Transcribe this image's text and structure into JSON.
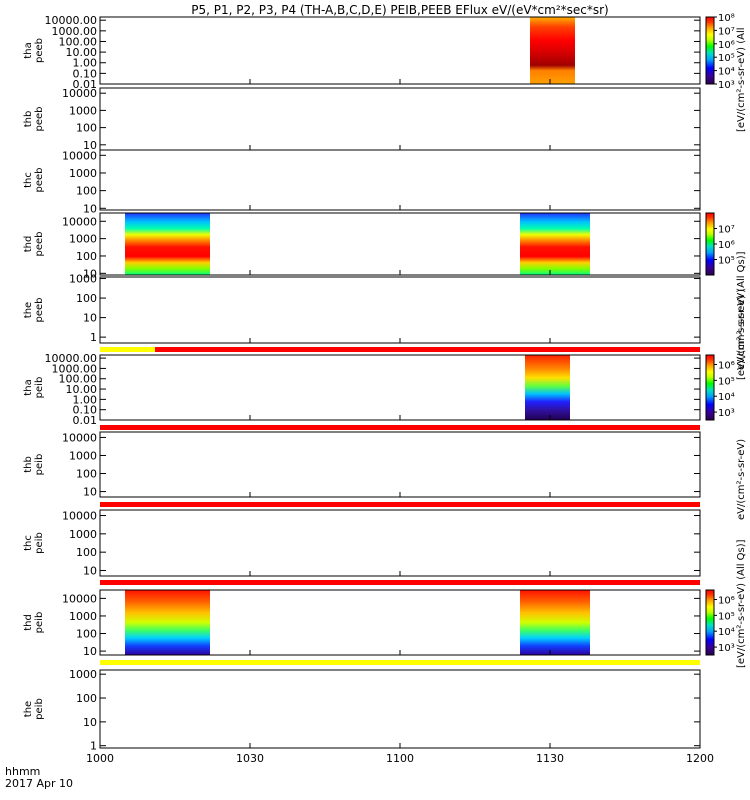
{
  "chart_data": {
    "type": "heatmap",
    "title": "P5, P1, P2, P3, P4 (TH-A,B,C,D,E) PEIB,PEEB EFlux eV/(eV*cm²*sec*sr)",
    "xlabel": "hhmm",
    "date_label": "2017 Apr 10",
    "x_tick_labels": [
      "1000",
      "1030",
      "1100",
      "1130",
      "1200"
    ],
    "x_range_hhmm": [
      "10:00",
      "12:00"
    ],
    "colorbar_unit_main": "eV/(cm²-s-sr-eV)",
    "colorbar_unit_top": "[eV/(cm²-s-sr-eV) (All",
    "colorbar_unit_alt": "[eV/(cm²-s-sr-eV) (All Qs)]",
    "colorbar_unit_e": "[eV/(cm²-s-sr-eV) (All Qs)]",
    "panels": [
      {
        "probe": "tha",
        "species": "peeb",
        "y_ticks": [
          "10000.00",
          "1000.00",
          "100.00",
          "10.00",
          "1.00",
          "0.10",
          "0.01"
        ],
        "y_log_range": [
          0.01,
          20000
        ],
        "colorbar": true,
        "cbar_ticks": [
          "10⁸",
          "10⁷",
          "10⁶",
          "10⁵",
          "10⁴",
          "10³"
        ],
        "cbar_log_range": [
          3,
          8
        ],
        "blocks": [
          {
            "t0": "11:26",
            "t1": "11:35",
            "style": "tha_peeb"
          }
        ],
        "status_bar": null
      },
      {
        "probe": "thb",
        "species": "peeb",
        "y_ticks": [
          "10000",
          "1000",
          "100",
          "10"
        ],
        "y_log_range": [
          5,
          20000
        ],
        "colorbar": false,
        "blocks": [],
        "status_bar": null
      },
      {
        "probe": "thc",
        "species": "peeb",
        "y_ticks": [
          "10000",
          "1000",
          "100",
          "10"
        ],
        "y_log_range": [
          8,
          20000
        ],
        "colorbar": false,
        "blocks": [],
        "status_bar": null
      },
      {
        "probe": "thd",
        "species": "peeb",
        "y_ticks": [
          "10000",
          "1000",
          "100",
          "10"
        ],
        "y_log_range": [
          8,
          30000
        ],
        "colorbar": true,
        "cbar_ticks": [
          "10⁷",
          "10⁶",
          "10⁵"
        ],
        "cbar_log_range": [
          4,
          8
        ],
        "blocks": [
          {
            "t0": "10:05",
            "t1": "10:22",
            "style": "thd_peeb"
          },
          {
            "t0": "11:24",
            "t1": "11:38",
            "style": "thd_peeb"
          }
        ],
        "status_bar": null
      },
      {
        "probe": "the",
        "species": "peeb",
        "y_ticks": [
          "1000",
          "100",
          "10",
          "1"
        ],
        "y_log_range": [
          0.5,
          1200
        ],
        "colorbar": false,
        "blocks": [],
        "status_bar": {
          "segments": [
            {
              "t0": "10:00",
              "t1": "10:11",
              "color": "#ffff00"
            },
            {
              "t0": "10:11",
              "t1": "12:00",
              "color": "#ff0000"
            }
          ]
        }
      },
      {
        "probe": "tha",
        "species": "peib",
        "y_ticks": [
          "10000.00",
          "1000.00",
          "100.00",
          "10.00",
          "1.00",
          "0.10",
          "0.01"
        ],
        "y_log_range": [
          0.01,
          20000
        ],
        "colorbar": true,
        "cbar_ticks": [
          "10⁶",
          "10⁵",
          "10⁴",
          "10³"
        ],
        "cbar_log_range": [
          2.5,
          6.6
        ],
        "blocks": [
          {
            "t0": "11:25",
            "t1": "11:34",
            "style": "tha_peib"
          }
        ],
        "status_bar": {
          "segments": [
            {
              "t0": "10:00",
              "t1": "12:00",
              "color": "#ff0000"
            }
          ]
        }
      },
      {
        "probe": "thb",
        "species": "peib",
        "y_ticks": [
          "10000",
          "1000",
          "100",
          "10"
        ],
        "y_log_range": [
          5,
          20000
        ],
        "colorbar": false,
        "blocks": [],
        "status_bar": {
          "segments": [
            {
              "t0": "10:00",
              "t1": "12:00",
              "color": "#ff0000"
            }
          ]
        }
      },
      {
        "probe": "thc",
        "species": "peib",
        "y_ticks": [
          "10000",
          "1000",
          "100",
          "10"
        ],
        "y_log_range": [
          5,
          20000
        ],
        "colorbar": false,
        "blocks": [],
        "status_bar": {
          "segments": [
            {
              "t0": "10:00",
              "t1": "12:00",
              "color": "#ff0000"
            }
          ]
        }
      },
      {
        "probe": "thd",
        "species": "peib",
        "y_ticks": [
          "10000",
          "1000",
          "100",
          "10"
        ],
        "y_log_range": [
          6,
          30000
        ],
        "colorbar": true,
        "cbar_ticks": [
          "10⁶",
          "10⁵",
          "10⁴",
          "10³"
        ],
        "cbar_log_range": [
          2.5,
          6.6
        ],
        "blocks": [
          {
            "t0": "10:05",
            "t1": "10:22",
            "style": "thd_peib"
          },
          {
            "t0": "11:24",
            "t1": "11:38",
            "style": "thd_peib"
          }
        ],
        "status_bar": null
      },
      {
        "probe": "the",
        "species": "peib",
        "y_ticks": [
          "1000",
          "100",
          "10",
          "1"
        ],
        "y_log_range": [
          0.8,
          1500
        ],
        "colorbar": false,
        "blocks": [],
        "status_bar": {
          "segments": [
            {
              "t0": "10:00",
              "t1": "12:00",
              "color": "#ffff00"
            }
          ]
        }
      }
    ]
  }
}
